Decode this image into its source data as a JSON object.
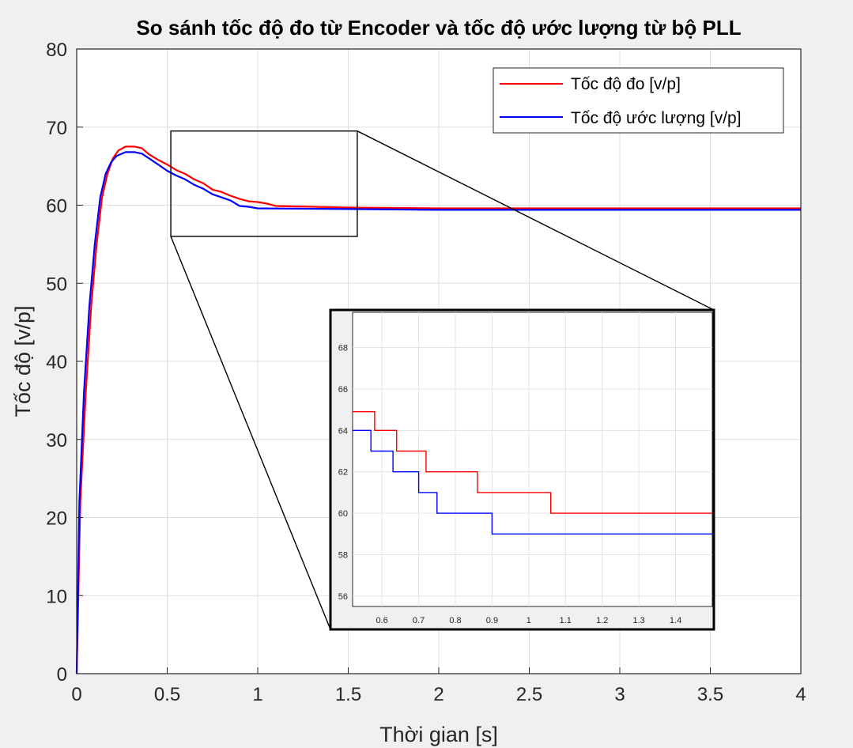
{
  "chart_data": {
    "type": "line",
    "title": "So sánh tốc độ đo từ Encoder và tốc độ ước lượng từ bộ PLL",
    "xlabel": "Thời gian [s]",
    "ylabel": "Tốc độ [v/p]",
    "xlim": [
      0,
      4
    ],
    "ylim": [
      0,
      80
    ],
    "xticks": [
      "0",
      "0.5",
      "1",
      "1.5",
      "2",
      "2.5",
      "3",
      "3.5",
      "4"
    ],
    "yticks": [
      "0",
      "10",
      "20",
      "30",
      "40",
      "50",
      "60",
      "70",
      "80"
    ],
    "grid": true,
    "legend_position": "top-right",
    "legend": [
      "Tốc độ đo [v/p]",
      "Tốc độ ước lượng [v/p]"
    ],
    "series": [
      {
        "name": "Tốc độ đo [v/p]",
        "color": "#ff0000",
        "points": [
          [
            0,
            0
          ],
          [
            0.02,
            22
          ],
          [
            0.05,
            36
          ],
          [
            0.08,
            47
          ],
          [
            0.11,
            55
          ],
          [
            0.14,
            61
          ],
          [
            0.17,
            64
          ],
          [
            0.2,
            66
          ],
          [
            0.23,
            67
          ],
          [
            0.27,
            67.5
          ],
          [
            0.32,
            67.5
          ],
          [
            0.36,
            67.3
          ],
          [
            0.4,
            66.5
          ],
          [
            0.45,
            65.8
          ],
          [
            0.5,
            65.2
          ],
          [
            0.55,
            64.5
          ],
          [
            0.6,
            64
          ],
          [
            0.65,
            63.3
          ],
          [
            0.7,
            62.8
          ],
          [
            0.75,
            62
          ],
          [
            0.8,
            61.7
          ],
          [
            0.85,
            61.2
          ],
          [
            0.9,
            60.8
          ],
          [
            0.95,
            60.5
          ],
          [
            1.0,
            60.4
          ],
          [
            1.05,
            60.2
          ],
          [
            1.1,
            59.9
          ],
          [
            1.5,
            59.7
          ],
          [
            2.0,
            59.6
          ],
          [
            2.5,
            59.6
          ],
          [
            3.0,
            59.6
          ],
          [
            3.5,
            59.6
          ],
          [
            4.0,
            59.6
          ]
        ]
      },
      {
        "name": "Tốc độ ước lượng [v/p]",
        "color": "#0000ff",
        "points": [
          [
            0,
            0
          ],
          [
            0.015,
            22
          ],
          [
            0.04,
            36
          ],
          [
            0.07,
            47
          ],
          [
            0.1,
            55
          ],
          [
            0.13,
            61
          ],
          [
            0.16,
            64
          ],
          [
            0.19,
            65.5
          ],
          [
            0.22,
            66.3
          ],
          [
            0.27,
            66.8
          ],
          [
            0.32,
            66.8
          ],
          [
            0.36,
            66.6
          ],
          [
            0.4,
            66
          ],
          [
            0.45,
            65.2
          ],
          [
            0.5,
            64.4
          ],
          [
            0.55,
            63.8
          ],
          [
            0.6,
            63.3
          ],
          [
            0.65,
            62.6
          ],
          [
            0.7,
            62.1
          ],
          [
            0.75,
            61.4
          ],
          [
            0.8,
            61
          ],
          [
            0.85,
            60.6
          ],
          [
            0.9,
            59.9
          ],
          [
            0.95,
            59.8
          ],
          [
            1.0,
            59.6
          ],
          [
            1.5,
            59.5
          ],
          [
            2.0,
            59.4
          ],
          [
            2.5,
            59.4
          ],
          [
            3.0,
            59.4
          ],
          [
            3.5,
            59.4
          ],
          [
            4.0,
            59.4
          ]
        ]
      }
    ],
    "zoom_box": {
      "x": [
        0.52,
        1.55
      ],
      "y": [
        56,
        69.5
      ]
    },
    "inset": {
      "xlim": [
        0.52,
        1.5
      ],
      "ylim": [
        55.5,
        69.7
      ],
      "xticks": [
        "0.6",
        "0.7",
        "0.8",
        "0.9",
        "1",
        "1.1",
        "1.2",
        "1.3",
        "1.4"
      ],
      "yticks": [
        "56",
        "58",
        "60",
        "62",
        "64",
        "66",
        "68"
      ],
      "series": [
        {
          "name": "Tốc độ đo [v/p]",
          "color": "#ff0000",
          "points": [
            [
              0.52,
              64.9
            ],
            [
              0.58,
              64.9
            ],
            [
              0.58,
              64
            ],
            [
              0.64,
              64
            ],
            [
              0.64,
              63
            ],
            [
              0.72,
              63
            ],
            [
              0.72,
              62
            ],
            [
              0.86,
              62
            ],
            [
              0.86,
              61
            ],
            [
              1.06,
              61
            ],
            [
              1.06,
              60
            ],
            [
              1.5,
              60
            ]
          ]
        },
        {
          "name": "Tốc độ ước lượng [v/p]",
          "color": "#0000ff",
          "points": [
            [
              0.52,
              64
            ],
            [
              0.57,
              64
            ],
            [
              0.57,
              63
            ],
            [
              0.63,
              63
            ],
            [
              0.63,
              62
            ],
            [
              0.7,
              62
            ],
            [
              0.7,
              61
            ],
            [
              0.75,
              61
            ],
            [
              0.75,
              60
            ],
            [
              0.9,
              60
            ],
            [
              0.9,
              59
            ],
            [
              1.5,
              59
            ]
          ]
        }
      ]
    }
  }
}
